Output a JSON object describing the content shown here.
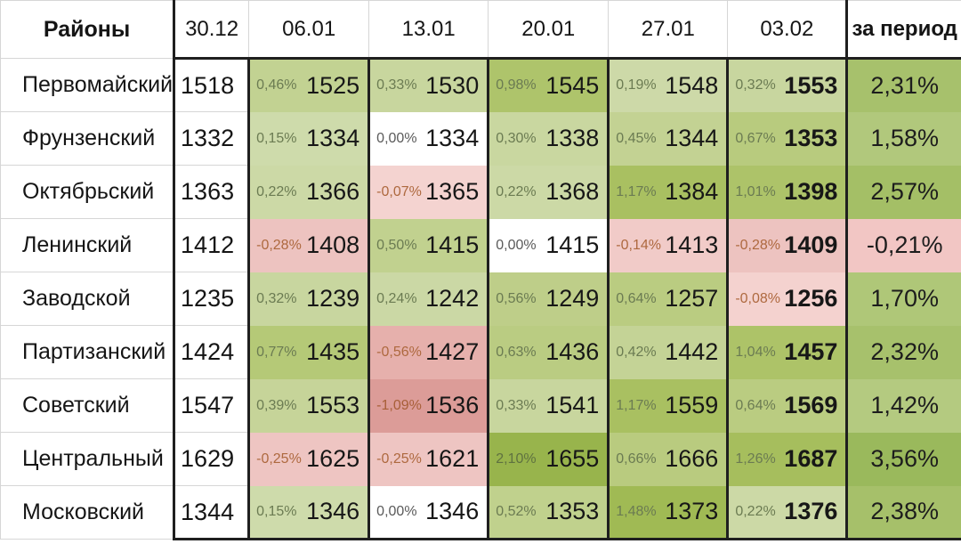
{
  "table": {
    "header": {
      "districts_label": "Районы",
      "dates": [
        "30.12",
        "06.01",
        "13.01",
        "20.01",
        "27.01",
        "03.02"
      ],
      "period_label": "за период"
    },
    "rows": [
      {
        "district": "Первомайский",
        "base": "1518",
        "weeks": [
          {
            "pct": "0,46%",
            "val": "1525",
            "bg": "#c2d292",
            "fg": "#6b7b52"
          },
          {
            "pct": "0,33%",
            "val": "1530",
            "bg": "#c8d69e",
            "fg": "#6b7b52"
          },
          {
            "pct": "0,98%",
            "val": "1545",
            "bg": "#aec46b",
            "fg": "#6b7b52"
          },
          {
            "pct": "0,19%",
            "val": "1548",
            "bg": "#cdd9a8",
            "fg": "#6b7b52"
          },
          {
            "pct": "0,32%",
            "val": "1553",
            "bg": "#c8d69f",
            "fg": "#6b7b52"
          }
        ],
        "period": {
          "pct": "2,31%",
          "bg": "#a7c16c"
        }
      },
      {
        "district": "Фрунзенский",
        "base": "1332",
        "weeks": [
          {
            "pct": "0,15%",
            "val": "1334",
            "bg": "#cedbab",
            "fg": "#6b7b52"
          },
          {
            "pct": "0,00%",
            "val": "1334",
            "bg": "#ffffff",
            "fg": "#5a5a5a"
          },
          {
            "pct": "0,30%",
            "val": "1338",
            "bg": "#c9d7a0",
            "fg": "#6b7b52"
          },
          {
            "pct": "0,45%",
            "val": "1344",
            "bg": "#c3d293",
            "fg": "#6b7b52"
          },
          {
            "pct": "0,67%",
            "val": "1353",
            "bg": "#b8cb7e",
            "fg": "#6b7b52"
          }
        ],
        "period": {
          "pct": "1,58%",
          "bg": "#b1c87c"
        }
      },
      {
        "district": "Октябрьский",
        "base": "1363",
        "weeks": [
          {
            "pct": "0,22%",
            "val": "1366",
            "bg": "#ccd9a6",
            "fg": "#6b7b52"
          },
          {
            "pct": "-0,07%",
            "val": "1365",
            "bg": "#f4d3d0",
            "fg": "#ae693f"
          },
          {
            "pct": "0,22%",
            "val": "1368",
            "bg": "#ccd9a6",
            "fg": "#6b7b52"
          },
          {
            "pct": "1,17%",
            "val": "1384",
            "bg": "#a9c061",
            "fg": "#6b7b52"
          },
          {
            "pct": "1,01%",
            "val": "1398",
            "bg": "#adc369",
            "fg": "#6b7b52"
          }
        ],
        "period": {
          "pct": "2,57%",
          "bg": "#a4bf66"
        }
      },
      {
        "district": "Ленинский",
        "base": "1412",
        "weeks": [
          {
            "pct": "-0,28%",
            "val": "1408",
            "bg": "#edc3c0",
            "fg": "#ae693f"
          },
          {
            "pct": "0,50%",
            "val": "1415",
            "bg": "#c1d18f",
            "fg": "#6b7b52"
          },
          {
            "pct": "0,00%",
            "val": "1415",
            "bg": "#ffffff",
            "fg": "#5a5a5a"
          },
          {
            "pct": "-0,14%",
            "val": "1413",
            "bg": "#f1cbc8",
            "fg": "#ae693f"
          },
          {
            "pct": "-0,28%",
            "val": "1409",
            "bg": "#edc3c0",
            "fg": "#ae693f"
          }
        ],
        "period": {
          "pct": "-0,21%",
          "bg": "#f2c6c4"
        }
      },
      {
        "district": "Заводской",
        "base": "1235",
        "weeks": [
          {
            "pct": "0,32%",
            "val": "1239",
            "bg": "#c8d69f",
            "fg": "#6b7b52"
          },
          {
            "pct": "0,24%",
            "val": "1242",
            "bg": "#cbd8a5",
            "fg": "#6b7b52"
          },
          {
            "pct": "0,56%",
            "val": "1249",
            "bg": "#bece89",
            "fg": "#6b7b52"
          },
          {
            "pct": "0,64%",
            "val": "1257",
            "bg": "#bacc81",
            "fg": "#6b7b52"
          },
          {
            "pct": "-0,08%",
            "val": "1256",
            "bg": "#f4d2cf",
            "fg": "#ae693f"
          }
        ],
        "period": {
          "pct": "1,70%",
          "bg": "#afc778"
        }
      },
      {
        "district": "Партизанский",
        "base": "1424",
        "weeks": [
          {
            "pct": "0,77%",
            "val": "1435",
            "bg": "#b5c977",
            "fg": "#6b7b52"
          },
          {
            "pct": "-0,56%",
            "val": "1427",
            "bg": "#e6b0ac",
            "fg": "#ae693f"
          },
          {
            "pct": "0,63%",
            "val": "1436",
            "bg": "#bacc82",
            "fg": "#6b7b52"
          },
          {
            "pct": "0,42%",
            "val": "1442",
            "bg": "#c4d396",
            "fg": "#6b7b52"
          },
          {
            "pct": "1,04%",
            "val": "1457",
            "bg": "#adc368",
            "fg": "#6b7b52"
          }
        ],
        "period": {
          "pct": "2,32%",
          "bg": "#a7c16c"
        }
      },
      {
        "district": "Советский",
        "base": "1547",
        "weeks": [
          {
            "pct": "0,39%",
            "val": "1553",
            "bg": "#c6d499",
            "fg": "#6b7b52"
          },
          {
            "pct": "-1,09%",
            "val": "1536",
            "bg": "#dc9c98",
            "fg": "#a85f38"
          },
          {
            "pct": "0,33%",
            "val": "1541",
            "bg": "#c8d69e",
            "fg": "#6b7b52"
          },
          {
            "pct": "1,17%",
            "val": "1559",
            "bg": "#a9c061",
            "fg": "#6b7b52"
          },
          {
            "pct": "0,64%",
            "val": "1569",
            "bg": "#bacc81",
            "fg": "#6b7b52"
          }
        ],
        "period": {
          "pct": "1,42%",
          "bg": "#b4ca80"
        }
      },
      {
        "district": "Центральный",
        "base": "1629",
        "weeks": [
          {
            "pct": "-0,25%",
            "val": "1625",
            "bg": "#eec5c2",
            "fg": "#ae693f"
          },
          {
            "pct": "-0,25%",
            "val": "1621",
            "bg": "#eec5c2",
            "fg": "#ae693f"
          },
          {
            "pct": "2,10%",
            "val": "1655",
            "bg": "#98b44c",
            "fg": "#5f7240"
          },
          {
            "pct": "0,66%",
            "val": "1666",
            "bg": "#b9cb7f",
            "fg": "#6b7b52"
          },
          {
            "pct": "1,26%",
            "val": "1687",
            "bg": "#a6be5d",
            "fg": "#6b7b52"
          }
        ],
        "period": {
          "pct": "3,56%",
          "bg": "#9ab95c"
        }
      },
      {
        "district": "Московский",
        "base": "1344",
        "weeks": [
          {
            "pct": "0,15%",
            "val": "1346",
            "bg": "#cedbab",
            "fg": "#6b7b52"
          },
          {
            "pct": "0,00%",
            "val": "1346",
            "bg": "#ffffff",
            "fg": "#5a5a5a"
          },
          {
            "pct": "0,52%",
            "val": "1353",
            "bg": "#c0d18d",
            "fg": "#6b7b52"
          },
          {
            "pct": "1,48%",
            "val": "1373",
            "bg": "#a0ba54",
            "fg": "#6b7b52"
          },
          {
            "pct": "0,22%",
            "val": "1376",
            "bg": "#ccd9a6",
            "fg": "#6b7b52"
          }
        ],
        "period": {
          "pct": "2,38%",
          "bg": "#a6c06a"
        }
      }
    ]
  },
  "chart_data": {
    "type": "table",
    "columns": [
      "Районы",
      "30.12",
      "06.01",
      "13.01",
      "20.01",
      "27.01",
      "03.02",
      "за период"
    ],
    "dates": [
      "30.12",
      "06.01",
      "13.01",
      "20.01",
      "27.01",
      "03.02"
    ],
    "rows": [
      {
        "district": "Первомайский",
        "values": [
          1518,
          1525,
          1530,
          1545,
          1548,
          1553
        ],
        "pct_change": [
          0.46,
          0.33,
          0.98,
          0.19,
          0.32
        ],
        "period_pct": 2.31
      },
      {
        "district": "Фрунзенский",
        "values": [
          1332,
          1334,
          1334,
          1338,
          1344,
          1353
        ],
        "pct_change": [
          0.15,
          0.0,
          0.3,
          0.45,
          0.67
        ],
        "period_pct": 1.58
      },
      {
        "district": "Октябрьский",
        "values": [
          1363,
          1366,
          1365,
          1368,
          1384,
          1398
        ],
        "pct_change": [
          0.22,
          -0.07,
          0.22,
          1.17,
          1.01
        ],
        "period_pct": 2.57
      },
      {
        "district": "Ленинский",
        "values": [
          1412,
          1408,
          1415,
          1415,
          1413,
          1409
        ],
        "pct_change": [
          -0.28,
          0.5,
          0.0,
          -0.14,
          -0.28
        ],
        "period_pct": -0.21
      },
      {
        "district": "Заводской",
        "values": [
          1235,
          1239,
          1242,
          1249,
          1257,
          1256
        ],
        "pct_change": [
          0.32,
          0.24,
          0.56,
          0.64,
          -0.08
        ],
        "period_pct": 1.7
      },
      {
        "district": "Партизанский",
        "values": [
          1424,
          1435,
          1427,
          1436,
          1442,
          1457
        ],
        "pct_change": [
          0.77,
          -0.56,
          0.63,
          0.42,
          1.04
        ],
        "period_pct": 2.32
      },
      {
        "district": "Советский",
        "values": [
          1547,
          1553,
          1536,
          1541,
          1559,
          1569
        ],
        "pct_change": [
          0.39,
          -1.09,
          0.33,
          1.17,
          0.64
        ],
        "period_pct": 1.42
      },
      {
        "district": "Центральный",
        "values": [
          1629,
          1625,
          1621,
          1655,
          1666,
          1687
        ],
        "pct_change": [
          -0.25,
          -0.25,
          2.1,
          0.66,
          1.26
        ],
        "period_pct": 3.56
      },
      {
        "district": "Московский",
        "values": [
          1344,
          1346,
          1346,
          1353,
          1373,
          1376
        ],
        "pct_change": [
          0.15,
          0.0,
          0.52,
          1.48,
          0.22
        ],
        "period_pct": 2.38
      }
    ],
    "heatmap_colors": {
      "positive_max": "#98b44c",
      "positive_min": "#d3dfb2",
      "negative_max": "#dc9c98",
      "negative_min": "#f4d5d3",
      "zero": "#ffffff",
      "negative_text": "#ae693f",
      "positive_text": "#6b7b52"
    },
    "legend_position": "none",
    "grid": true
  }
}
